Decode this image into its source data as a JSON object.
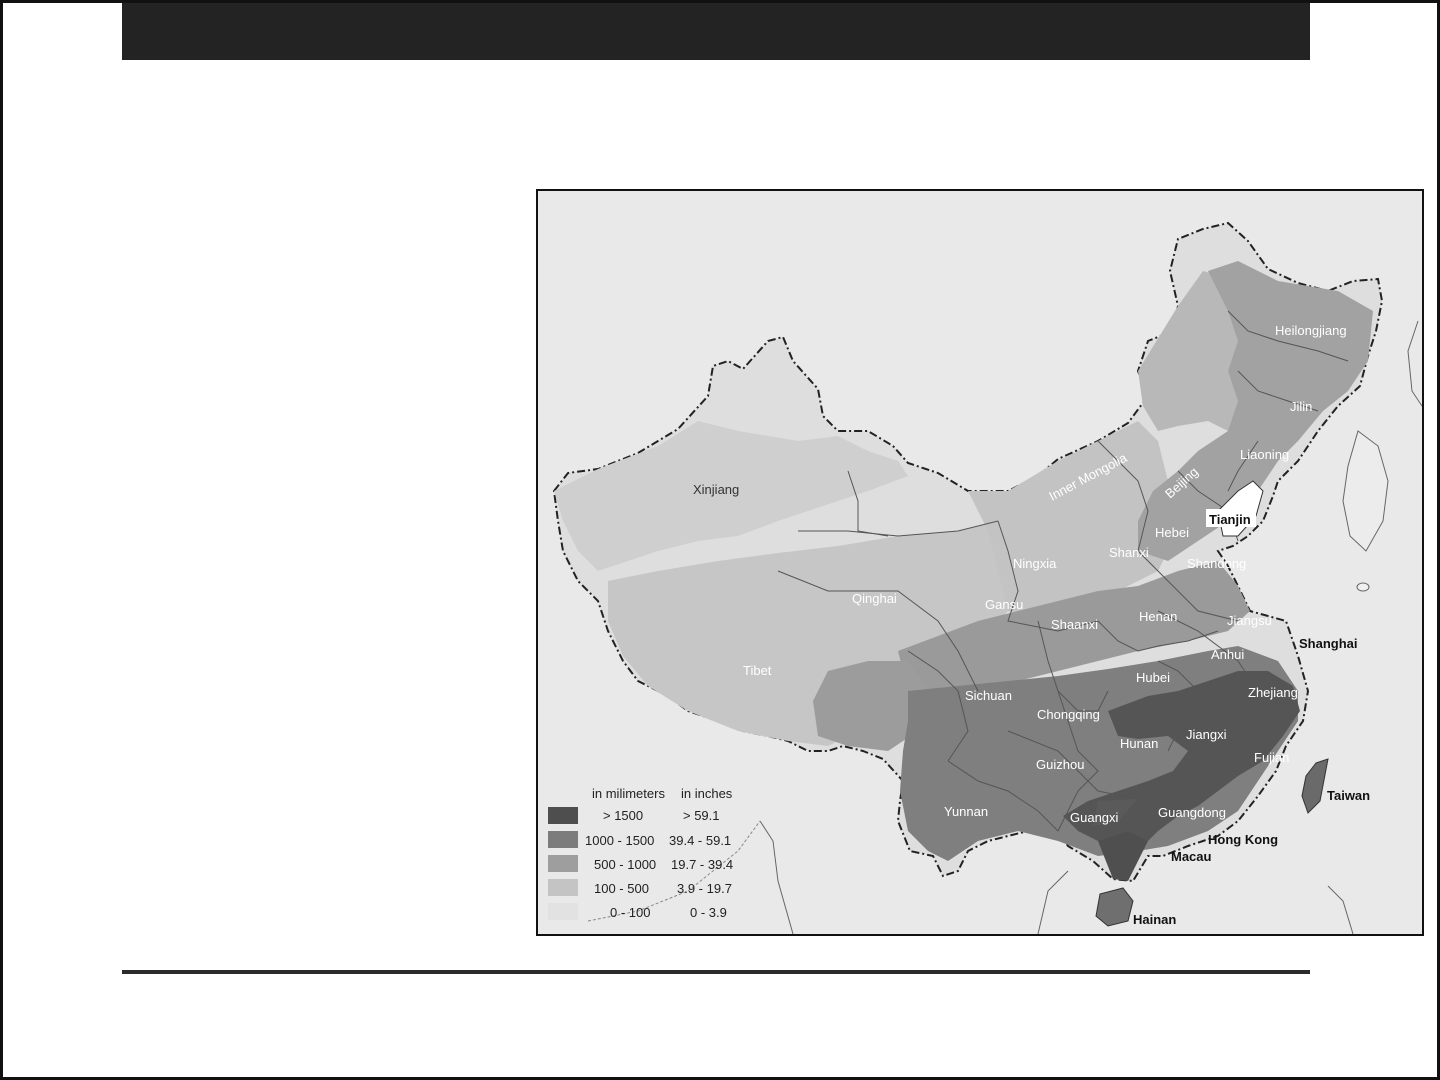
{
  "legend": {
    "header_mm": "in milimeters",
    "header_in": "in inches",
    "rows": [
      {
        "mm": "> 1500",
        "in": "> 59.1",
        "color": "#4e4e4e"
      },
      {
        "mm": "1000 - 1500",
        "in": "39.4 - 59.1",
        "color": "#7c7c7c"
      },
      {
        "mm": "500 - 1000",
        "in": "19.7 - 39.4",
        "color": "#9e9e9e"
      },
      {
        "mm": "100 - 500",
        "in": "3.9 - 19.7",
        "color": "#c4c4c4"
      },
      {
        "mm": "0 - 100",
        "in": "0 - 3.9",
        "color": "#e2e2e2"
      }
    ]
  },
  "regions": {
    "xinjiang": "Xinjiang",
    "tibet": "Tibet",
    "qinghai": "Qinghai",
    "gansu": "Gansu",
    "inner_mongolia": "Inner Mongolia",
    "heilongjiang": "Heilongjiang",
    "jilin": "Jilin",
    "liaoning": "Liaoning",
    "beijing": "Beijing",
    "hebei": "Hebei",
    "shanxi": "Shanxi",
    "ningxia": "Ningxia",
    "shandong": "Shandong",
    "shaanxi": "Shaanxi",
    "henan": "Henan",
    "jiangsu": "Jiangsu",
    "anhui": "Anhui",
    "hubei": "Hubei",
    "sichuan": "Sichuan",
    "chongqing": "Chongqing",
    "zhejiang": "Zhejiang",
    "jiangxi": "Jiangxi",
    "hunan": "Hunan",
    "fujian": "Fujian",
    "guizhou": "Guizhou",
    "yunnan": "Yunnan",
    "guangxi": "Guangxi",
    "guangdong": "Guangdong"
  },
  "places": {
    "tianjin": "Tianjin",
    "shanghai": "Shanghai",
    "taiwan": "Taiwan",
    "hong_kong": "Hong Kong",
    "macau": "Macau",
    "hainan": "Hainan"
  }
}
